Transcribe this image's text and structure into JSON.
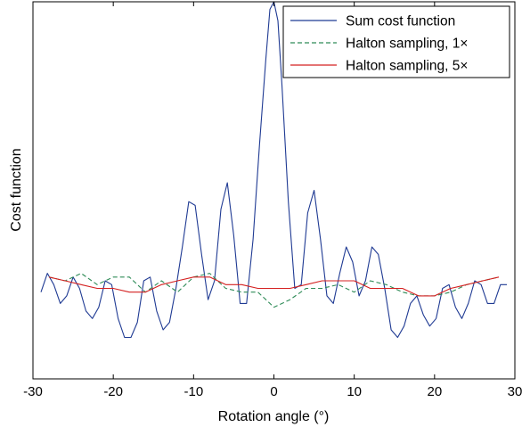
{
  "chart_data": {
    "type": "line",
    "title": "",
    "xlabel": "Rotation angle (°)",
    "ylabel": "Cost function",
    "xlim": [
      -30,
      30
    ],
    "ylim": [
      0,
      1
    ],
    "xticks": [
      -30,
      -20,
      -10,
      0,
      10,
      20,
      30
    ],
    "xtick_labels": [
      "-30",
      "-20",
      "-10",
      "0",
      "10",
      "20",
      "30"
    ],
    "yticks_labeled": false,
    "grid": false,
    "legend_position": "top-right",
    "series": [
      {
        "name": "Sum cost function",
        "color": "#1f3a93",
        "style": "solid",
        "x": [
          -29,
          -28.2,
          -27.4,
          -26.6,
          -25.8,
          -25,
          -24.2,
          -23.4,
          -22.6,
          -21.8,
          -21,
          -20.2,
          -19.4,
          -18.6,
          -17.8,
          -17,
          -16.2,
          -15.4,
          -14.6,
          -13.8,
          -13,
          -12.2,
          -11.4,
          -10.6,
          -9.8,
          -9,
          -8.2,
          -7.4,
          -6.6,
          -5.8,
          -5,
          -4.2,
          -3.4,
          -2.6,
          -1.8,
          -1,
          -0.5,
          0,
          0.5,
          1,
          1.8,
          2.6,
          3.4,
          4.2,
          5,
          5.8,
          6.6,
          7.4,
          8.2,
          9,
          9.8,
          10.6,
          11.4,
          12.2,
          13,
          13.8,
          14.6,
          15.4,
          16.2,
          17,
          17.8,
          18.6,
          19.4,
          20.2,
          21,
          21.8,
          22.6,
          23.4,
          24.2,
          25,
          25.8,
          26.6,
          27.4,
          28.2,
          29
        ],
        "values": [
          0.23,
          0.28,
          0.25,
          0.2,
          0.22,
          0.27,
          0.24,
          0.18,
          0.16,
          0.19,
          0.26,
          0.25,
          0.16,
          0.11,
          0.11,
          0.15,
          0.26,
          0.27,
          0.18,
          0.13,
          0.15,
          0.24,
          0.35,
          0.47,
          0.46,
          0.33,
          0.21,
          0.26,
          0.45,
          0.52,
          0.38,
          0.2,
          0.2,
          0.37,
          0.62,
          0.85,
          0.98,
          1.0,
          0.95,
          0.78,
          0.47,
          0.24,
          0.25,
          0.44,
          0.5,
          0.37,
          0.22,
          0.2,
          0.28,
          0.35,
          0.31,
          0.22,
          0.26,
          0.35,
          0.33,
          0.24,
          0.13,
          0.11,
          0.14,
          0.2,
          0.22,
          0.17,
          0.14,
          0.16,
          0.24,
          0.25,
          0.19,
          0.16,
          0.2,
          0.26,
          0.25,
          0.2,
          0.2,
          0.25,
          0.25
        ]
      },
      {
        "name": "Halton sampling, 1×",
        "color": "#2e8b57",
        "style": "dashed",
        "x": [
          -28,
          -26,
          -24,
          -22,
          -20,
          -18,
          -16,
          -14,
          -12,
          -10,
          -8,
          -6,
          -4,
          -2,
          0,
          2,
          4,
          6,
          8,
          10,
          12,
          14,
          16,
          18,
          20,
          22,
          24,
          26,
          28
        ],
        "values": [
          0.27,
          0.26,
          0.28,
          0.25,
          0.27,
          0.27,
          0.23,
          0.26,
          0.23,
          0.27,
          0.28,
          0.24,
          0.23,
          0.23,
          0.19,
          0.21,
          0.24,
          0.24,
          0.25,
          0.23,
          0.26,
          0.25,
          0.23,
          0.22,
          0.22,
          0.23,
          0.25,
          0.26,
          0.27
        ]
      },
      {
        "name": "Halton sampling, 5×",
        "color": "#d42020",
        "style": "solid",
        "x": [
          -28,
          -26,
          -24,
          -22,
          -20,
          -18,
          -16,
          -14,
          -12,
          -10,
          -8,
          -6,
          -4,
          -2,
          0,
          2,
          4,
          6,
          8,
          10,
          12,
          14,
          16,
          18,
          20,
          22,
          24,
          26,
          28
        ],
        "values": [
          0.27,
          0.26,
          0.25,
          0.24,
          0.24,
          0.23,
          0.23,
          0.25,
          0.26,
          0.27,
          0.27,
          0.25,
          0.25,
          0.24,
          0.24,
          0.24,
          0.25,
          0.26,
          0.26,
          0.26,
          0.24,
          0.24,
          0.24,
          0.22,
          0.22,
          0.24,
          0.25,
          0.26,
          0.27
        ]
      }
    ]
  }
}
